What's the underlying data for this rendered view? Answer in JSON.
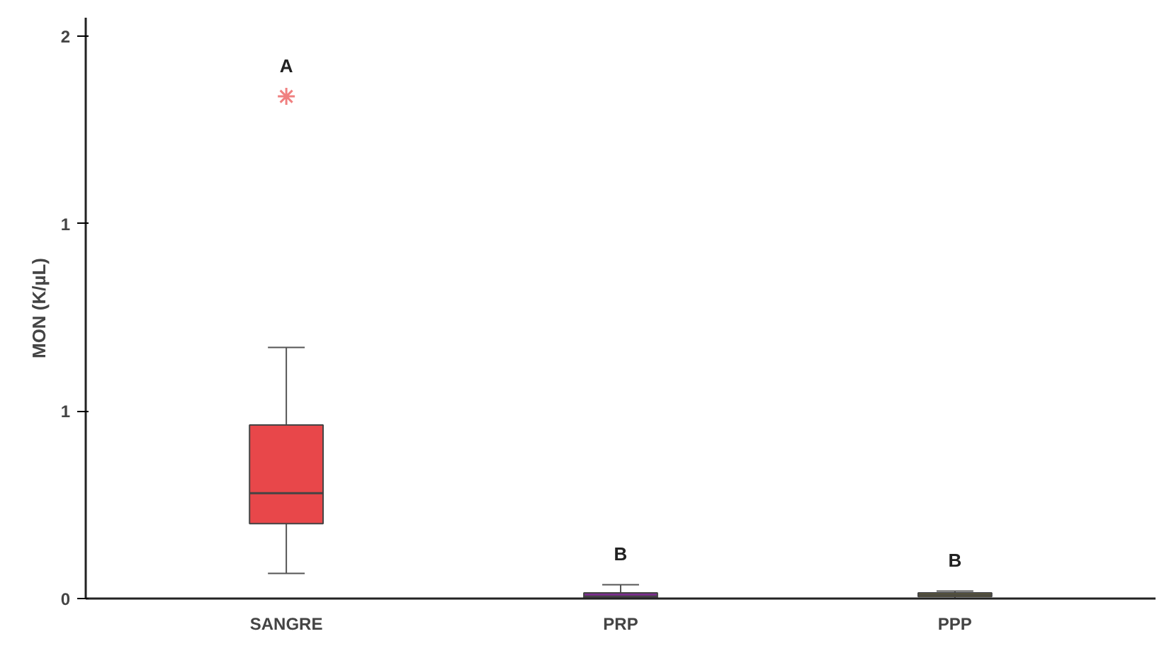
{
  "chart_data": {
    "type": "box",
    "ylabel": "MON (K/µL)",
    "categories": [
      "SANGRE",
      "PRP",
      "PPP"
    ],
    "colors": [
      "#e8474a",
      "#7b2d8e",
      "#d4b800"
    ],
    "boxes": [
      {
        "low": 0.067,
        "q1": 0.2,
        "median": 0.281,
        "q3": 0.463,
        "high": 0.67,
        "outliers": [
          1.34
        ]
      },
      {
        "low": 0.0,
        "q1": 0.0,
        "median": 0.005,
        "q3": 0.015,
        "high": 0.037
      },
      {
        "low": 0.0,
        "q1": 0.005,
        "median": 0.01,
        "q3": 0.015,
        "high": 0.02
      }
    ],
    "ylim": [
      0,
      1.55
    ],
    "yticks": [
      {
        "value": 0,
        "label": "0"
      },
      {
        "value": 0.5,
        "label": "1"
      },
      {
        "value": 1,
        "label": "1"
      },
      {
        "value": 1.5,
        "label": "2"
      }
    ],
    "grid": false,
    "annotations": [
      "A",
      "B",
      "B"
    ]
  }
}
